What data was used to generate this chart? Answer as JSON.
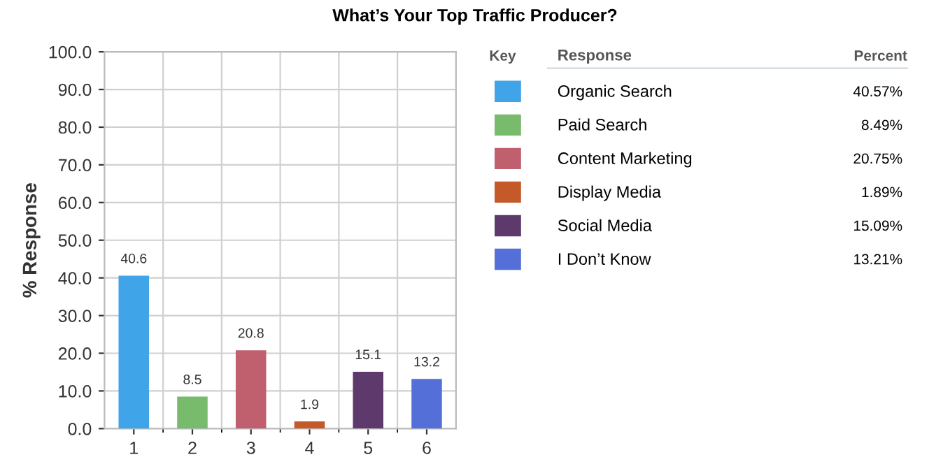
{
  "chart_data": {
    "type": "bar",
    "title": "What’s Your Top Traffic Producer?",
    "ylabel": "% Response",
    "categories": [
      "1",
      "2",
      "3",
      "4",
      "5",
      "6"
    ],
    "series": [
      {
        "name": "Organic Search",
        "color": "#3fa4e8",
        "values": [
          40.6,
          null,
          null,
          null,
          null,
          null
        ],
        "value_labels": [
          "40.6",
          null,
          null,
          null,
          null,
          null
        ]
      },
      {
        "name": "Paid Search",
        "color": "#78bb6c",
        "values": [
          null,
          8.5,
          null,
          null,
          null,
          null
        ],
        "value_labels": [
          null,
          "8.5",
          null,
          null,
          null,
          null
        ]
      },
      {
        "name": "Content Marketing",
        "color": "#c05f6e",
        "values": [
          null,
          null,
          20.8,
          null,
          null,
          null
        ],
        "value_labels": [
          null,
          null,
          "20.8",
          null,
          null,
          null
        ]
      },
      {
        "name": "Display Media",
        "color": "#c4592a",
        "values": [
          null,
          null,
          null,
          1.9,
          null,
          null
        ],
        "value_labels": [
          null,
          null,
          null,
          "1.9",
          null,
          null
        ]
      },
      {
        "name": "Social Media",
        "color": "#5e3a6c",
        "values": [
          null,
          null,
          null,
          null,
          15.1,
          null
        ],
        "value_labels": [
          null,
          null,
          null,
          null,
          "15.1",
          null
        ]
      },
      {
        "name": "I Don’t Know",
        "color": "#5470d8",
        "values": [
          null,
          null,
          null,
          null,
          null,
          13.2
        ],
        "value_labels": [
          null,
          null,
          null,
          null,
          null,
          "13.2"
        ]
      }
    ],
    "ylim": [
      0,
      100
    ],
    "yticks": [
      {
        "value": 0,
        "label": "0.0"
      },
      {
        "value": 10,
        "label": "10.0"
      },
      {
        "value": 20,
        "label": "20.0"
      },
      {
        "value": 30,
        "label": "30.0"
      },
      {
        "value": 40,
        "label": "40.0"
      },
      {
        "value": 50,
        "label": "50.0"
      },
      {
        "value": 60,
        "label": "60.0"
      },
      {
        "value": 70,
        "label": "70.0"
      },
      {
        "value": 80,
        "label": "80.0"
      },
      {
        "value": 90,
        "label": "90.0"
      },
      {
        "value": 100,
        "label": "100.0"
      }
    ],
    "grid": true,
    "legend": "right",
    "annotations": [
      "Key",
      "Response",
      "Percent",
      "40.57%",
      "8.49%",
      "20.75%",
      "1.89%",
      "15.09%",
      "13.21%"
    ]
  }
}
